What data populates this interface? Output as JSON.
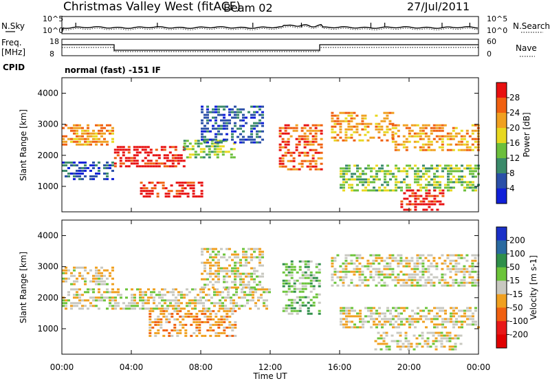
{
  "header": {
    "title": "Christmas Valley West (fitACF)",
    "beam": "Beam 02",
    "date": "27/Jul/2011"
  },
  "side_labels": {
    "nsky": "N.Sky",
    "nsearch": "N.Search",
    "freq": "Freq.",
    "freq_unit": "[MHz]",
    "nave": "Nave",
    "cpid": "CPID"
  },
  "top_panels": {
    "noise_left_ticks": [
      "10^5",
      "10^0"
    ],
    "noise_right_ticks": [
      "10^5",
      "10^0"
    ],
    "freq_left_ticks": [
      "18",
      "8"
    ],
    "nave_right_ticks": [
      "60",
      "0"
    ],
    "cpid_text": "normal (fast) -151 IF"
  },
  "chart_data": [
    {
      "type": "heatmap",
      "panel": "power",
      "ylabel": "Slant Range [km]",
      "ylim": [
        180,
        4500
      ],
      "yticks": [
        1000,
        2000,
        3000,
        4000
      ],
      "xlim_hours": [
        0,
        24
      ],
      "colorbar": {
        "label": "Power [dB]",
        "ticks": [
          "4",
          "8",
          "12",
          "16",
          "20",
          "24",
          "28"
        ],
        "colors": [
          "#1020d8",
          "#2a4fa8",
          "#3a8a6a",
          "#6cbf3c",
          "#e8d820",
          "#f0a020",
          "#f06010",
          "#e81010"
        ]
      }
    },
    {
      "type": "heatmap",
      "panel": "velocity",
      "ylabel": "Slant Range [km]",
      "ylim": [
        180,
        4500
      ],
      "yticks": [
        1000,
        2000,
        3000,
        4000
      ],
      "xlim_hours": [
        0,
        24
      ],
      "colorbar": {
        "label": "Velocity [m s-1]",
        "ticks": [
          "200",
          "100",
          "50",
          "15",
          "-15",
          "-50",
          "-100",
          "-200"
        ],
        "colors": [
          "#1a30c8",
          "#2a6aa0",
          "#2f8f4a",
          "#6cc43a",
          "#c8c8c0",
          "#f0a020",
          "#f06010",
          "#e81818",
          "#e00000"
        ]
      }
    }
  ],
  "xaxis": {
    "ticks": [
      "00:00",
      "04:00",
      "08:00",
      "12:00",
      "16:00",
      "20:00",
      "00:00"
    ],
    "label": "Time UT"
  }
}
